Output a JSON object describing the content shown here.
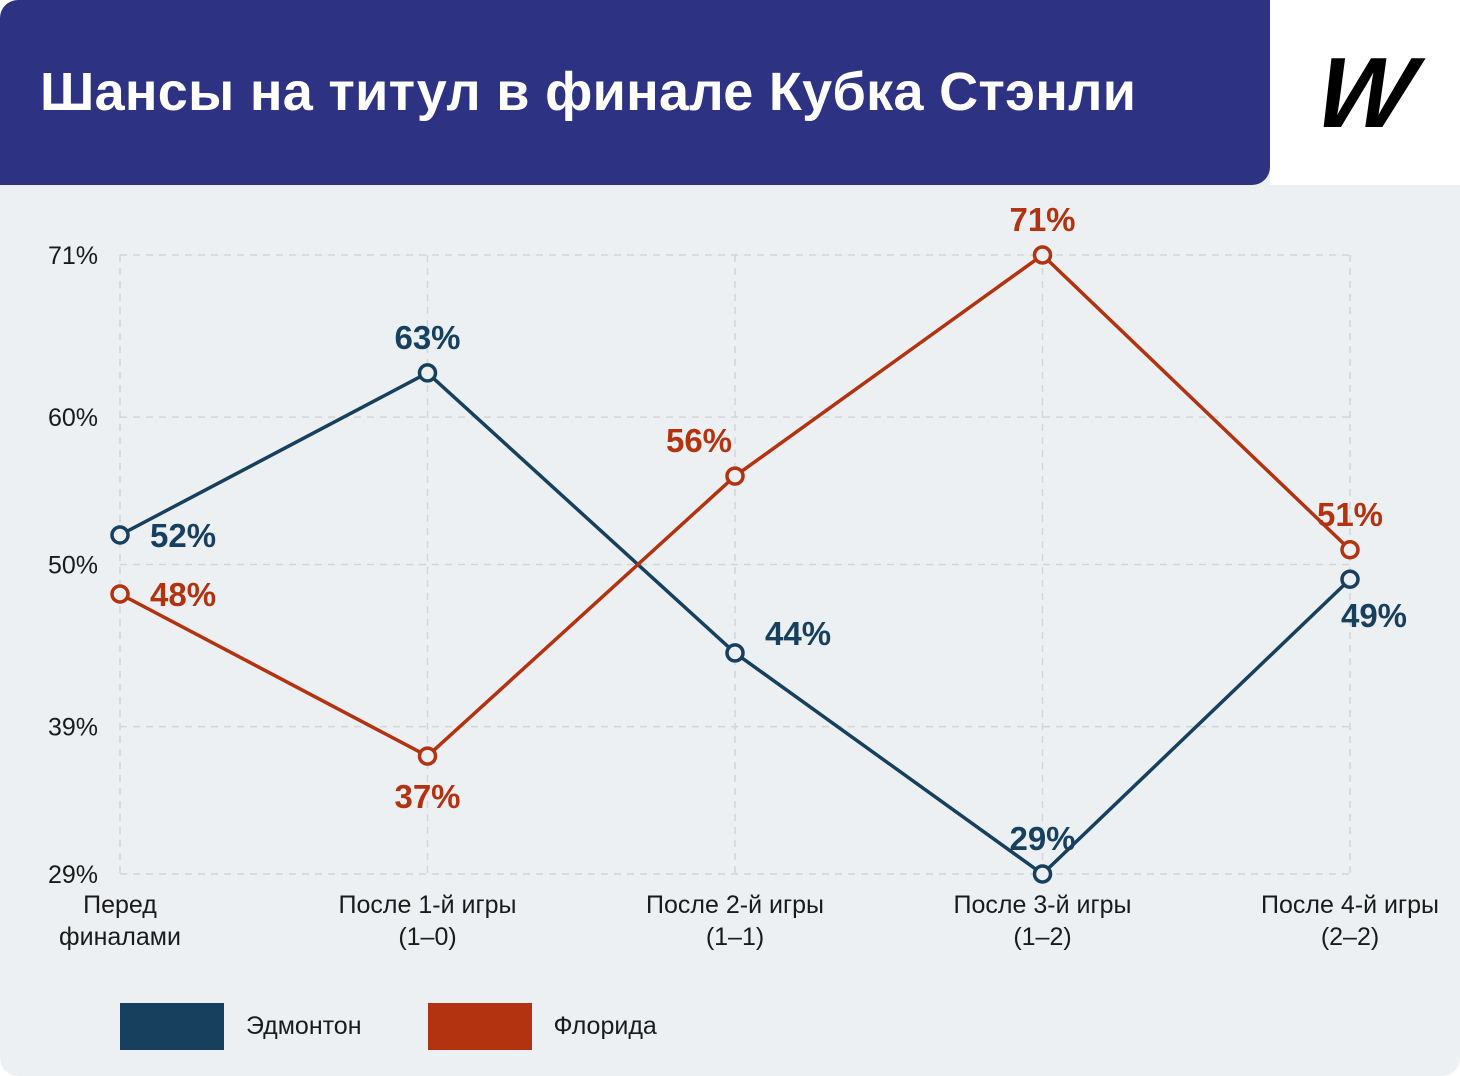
{
  "page": {
    "title": "Шансы на титул в финале Кубка Стэнли",
    "logo": "W",
    "header_bg": "#2d3282",
    "bg_color": "#edf0f2"
  },
  "chart_data": {
    "type": "line",
    "title": "Шансы на титул в финале Кубка Стэнли",
    "categories": [
      {
        "line1": "Перед",
        "line2": "финалами"
      },
      {
        "line1": "После 1-й игры",
        "line2": "(1–0)"
      },
      {
        "line1": "После 2-й игры",
        "line2": "(1–1)"
      },
      {
        "line1": "После 3-й игры",
        "line2": "(1–2)"
      },
      {
        "line1": "После 4-й игры",
        "line2": "(2–2)"
      }
    ],
    "y_ticks": [
      {
        "label": "71%",
        "value": 71
      },
      {
        "label": "60%",
        "value": 60
      },
      {
        "label": "50%",
        "value": 50
      },
      {
        "label": "39%",
        "value": 39
      },
      {
        "label": "29%",
        "value": 29
      }
    ],
    "ylim": [
      29,
      71
    ],
    "grid": "dashed",
    "legend_position": "bottom-left",
    "series": [
      {
        "name": "Эдмонтон",
        "color": "#16405e",
        "values": [
          52,
          63,
          44,
          29,
          49
        ],
        "labels": [
          "52%",
          "63%",
          "44%",
          "29%",
          "49%"
        ],
        "label_placement": [
          "right",
          "above",
          "right-above",
          "above",
          "below-right"
        ]
      },
      {
        "name": "Флорида",
        "color": "#b33210",
        "values": [
          48,
          37,
          56,
          71,
          51
        ],
        "labels": [
          "48%",
          "37%",
          "56%",
          "71%",
          "51%"
        ],
        "label_placement": [
          "right",
          "below",
          "above-left",
          "above",
          "above"
        ]
      }
    ]
  },
  "legend": {
    "items": [
      {
        "label": "Эдмонтон",
        "color": "#16405e"
      },
      {
        "label": "Флорида",
        "color": "#b33210"
      }
    ]
  }
}
